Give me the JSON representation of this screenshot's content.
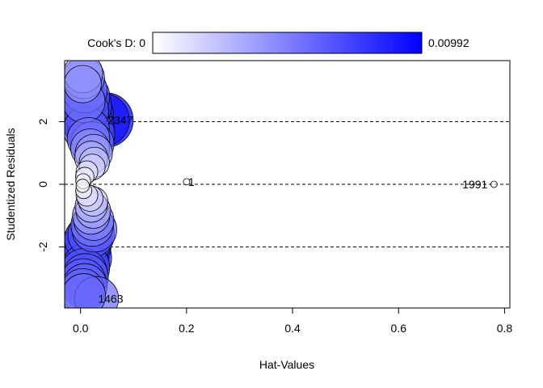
{
  "chart_data": {
    "type": "scatter",
    "title": "",
    "xlabel": "Hat-Values",
    "ylabel": "Studentized Residuals",
    "xlim": [
      -0.03,
      0.81
    ],
    "ylim": [
      -3.95,
      3.95
    ],
    "x_ticks": [
      0.0,
      0.2,
      0.4,
      0.6,
      0.8
    ],
    "x_tick_labels": [
      "0.0",
      "0.2",
      "0.4",
      "0.6",
      "0.8"
    ],
    "y_ticks": [
      -2,
      0,
      2
    ],
    "y_tick_labels": [
      "-2",
      "0",
      "2"
    ],
    "reference_lines_y": [
      -2,
      0,
      2
    ],
    "grid": false,
    "legend": {
      "placement": "top",
      "label": "Cook's D: 0",
      "max_label": "0.00992",
      "min_value": 0,
      "max_value": 0.00992,
      "color_low": "#ffffff",
      "color_high": "#0000ff"
    },
    "labels": [
      {
        "text": "2347",
        "x": 0.048,
        "y": 2.05
      },
      {
        "text": "1",
        "x": 0.2,
        "y": 0.08
      },
      {
        "text": "1991",
        "x": 0.78,
        "y": 0.0
      },
      {
        "text": "1463",
        "x": 0.03,
        "y": -3.65
      }
    ],
    "series": [
      {
        "points": [
          {
            "x": 0.005,
            "y": 3.55,
            "cooks": 0.0045
          },
          {
            "x": 0.006,
            "y": 3.4,
            "cooks": 0.0052
          },
          {
            "x": 0.004,
            "y": 3.2,
            "cooks": 0.004
          },
          {
            "x": 0.008,
            "y": 3.0,
            "cooks": 0.0062
          },
          {
            "x": 0.01,
            "y": 2.8,
            "cooks": 0.0072
          },
          {
            "x": 0.006,
            "y": 2.65,
            "cooks": 0.0055
          },
          {
            "x": 0.012,
            "y": 2.5,
            "cooks": 0.0078
          },
          {
            "x": 0.009,
            "y": 2.35,
            "cooks": 0.0068
          },
          {
            "x": 0.014,
            "y": 2.2,
            "cooks": 0.0085
          },
          {
            "x": 0.008,
            "y": 2.1,
            "cooks": 0.0075
          },
          {
            "x": 0.048,
            "y": 2.05,
            "cooks": 0.0097
          },
          {
            "x": 0.042,
            "y": 2.05,
            "cooks": 0.0092
          },
          {
            "x": 0.016,
            "y": 1.9,
            "cooks": 0.008
          },
          {
            "x": 0.011,
            "y": 1.75,
            "cooks": 0.0066
          },
          {
            "x": 0.02,
            "y": 1.6,
            "cooks": 0.007
          },
          {
            "x": 0.015,
            "y": 1.45,
            "cooks": 0.0055
          },
          {
            "x": 0.022,
            "y": 1.3,
            "cooks": 0.0058
          },
          {
            "x": 0.018,
            "y": 1.15,
            "cooks": 0.0044
          },
          {
            "x": 0.025,
            "y": 1.0,
            "cooks": 0.004
          },
          {
            "x": 0.02,
            "y": 0.85,
            "cooks": 0.003
          },
          {
            "x": 0.026,
            "y": 0.7,
            "cooks": 0.0024
          },
          {
            "x": 0.022,
            "y": 0.55,
            "cooks": 0.0016
          },
          {
            "x": 0.012,
            "y": 0.4,
            "cooks": 0.001
          },
          {
            "x": 0.008,
            "y": 0.25,
            "cooks": 0.0006
          },
          {
            "x": 0.005,
            "y": 0.1,
            "cooks": 0.0003
          },
          {
            "x": 0.004,
            "y": -0.05,
            "cooks": 0.0002
          },
          {
            "x": 0.006,
            "y": -0.2,
            "cooks": 0.0004
          },
          {
            "x": 0.012,
            "y": -0.35,
            "cooks": 0.001
          },
          {
            "x": 0.018,
            "y": -0.45,
            "cooks": 0.0016
          },
          {
            "x": 0.024,
            "y": -0.55,
            "cooks": 0.0022
          },
          {
            "x": 0.02,
            "y": -0.7,
            "cooks": 0.0028
          },
          {
            "x": 0.024,
            "y": -0.85,
            "cooks": 0.0034
          },
          {
            "x": 0.02,
            "y": -1.0,
            "cooks": 0.004
          },
          {
            "x": 0.025,
            "y": -1.15,
            "cooks": 0.0048
          },
          {
            "x": 0.022,
            "y": -1.3,
            "cooks": 0.0055
          },
          {
            "x": 0.026,
            "y": -1.45,
            "cooks": 0.0062
          },
          {
            "x": 0.02,
            "y": -1.6,
            "cooks": 0.0068
          },
          {
            "x": 0.015,
            "y": -1.75,
            "cooks": 0.0072
          },
          {
            "x": 0.012,
            "y": -1.9,
            "cooks": 0.0076
          },
          {
            "x": 0.01,
            "y": -2.05,
            "cooks": 0.008
          },
          {
            "x": 0.008,
            "y": -2.2,
            "cooks": 0.0082
          },
          {
            "x": 0.012,
            "y": -2.35,
            "cooks": 0.0078
          },
          {
            "x": 0.007,
            "y": -2.5,
            "cooks": 0.0075
          },
          {
            "x": 0.01,
            "y": -2.65,
            "cooks": 0.0072
          },
          {
            "x": 0.006,
            "y": -2.8,
            "cooks": 0.0068
          },
          {
            "x": 0.009,
            "y": -2.95,
            "cooks": 0.0066
          },
          {
            "x": 0.005,
            "y": -3.1,
            "cooks": 0.0064
          },
          {
            "x": 0.008,
            "y": -3.25,
            "cooks": 0.0062
          },
          {
            "x": 0.004,
            "y": -3.4,
            "cooks": 0.006
          },
          {
            "x": 0.006,
            "y": -3.55,
            "cooks": 0.0058
          },
          {
            "x": 0.03,
            "y": -3.65,
            "cooks": 0.006
          },
          {
            "x": 0.2,
            "y": 0.08,
            "cooks": 0.0
          },
          {
            "x": 0.78,
            "y": 0.0,
            "cooks": 0.0
          }
        ]
      }
    ]
  }
}
